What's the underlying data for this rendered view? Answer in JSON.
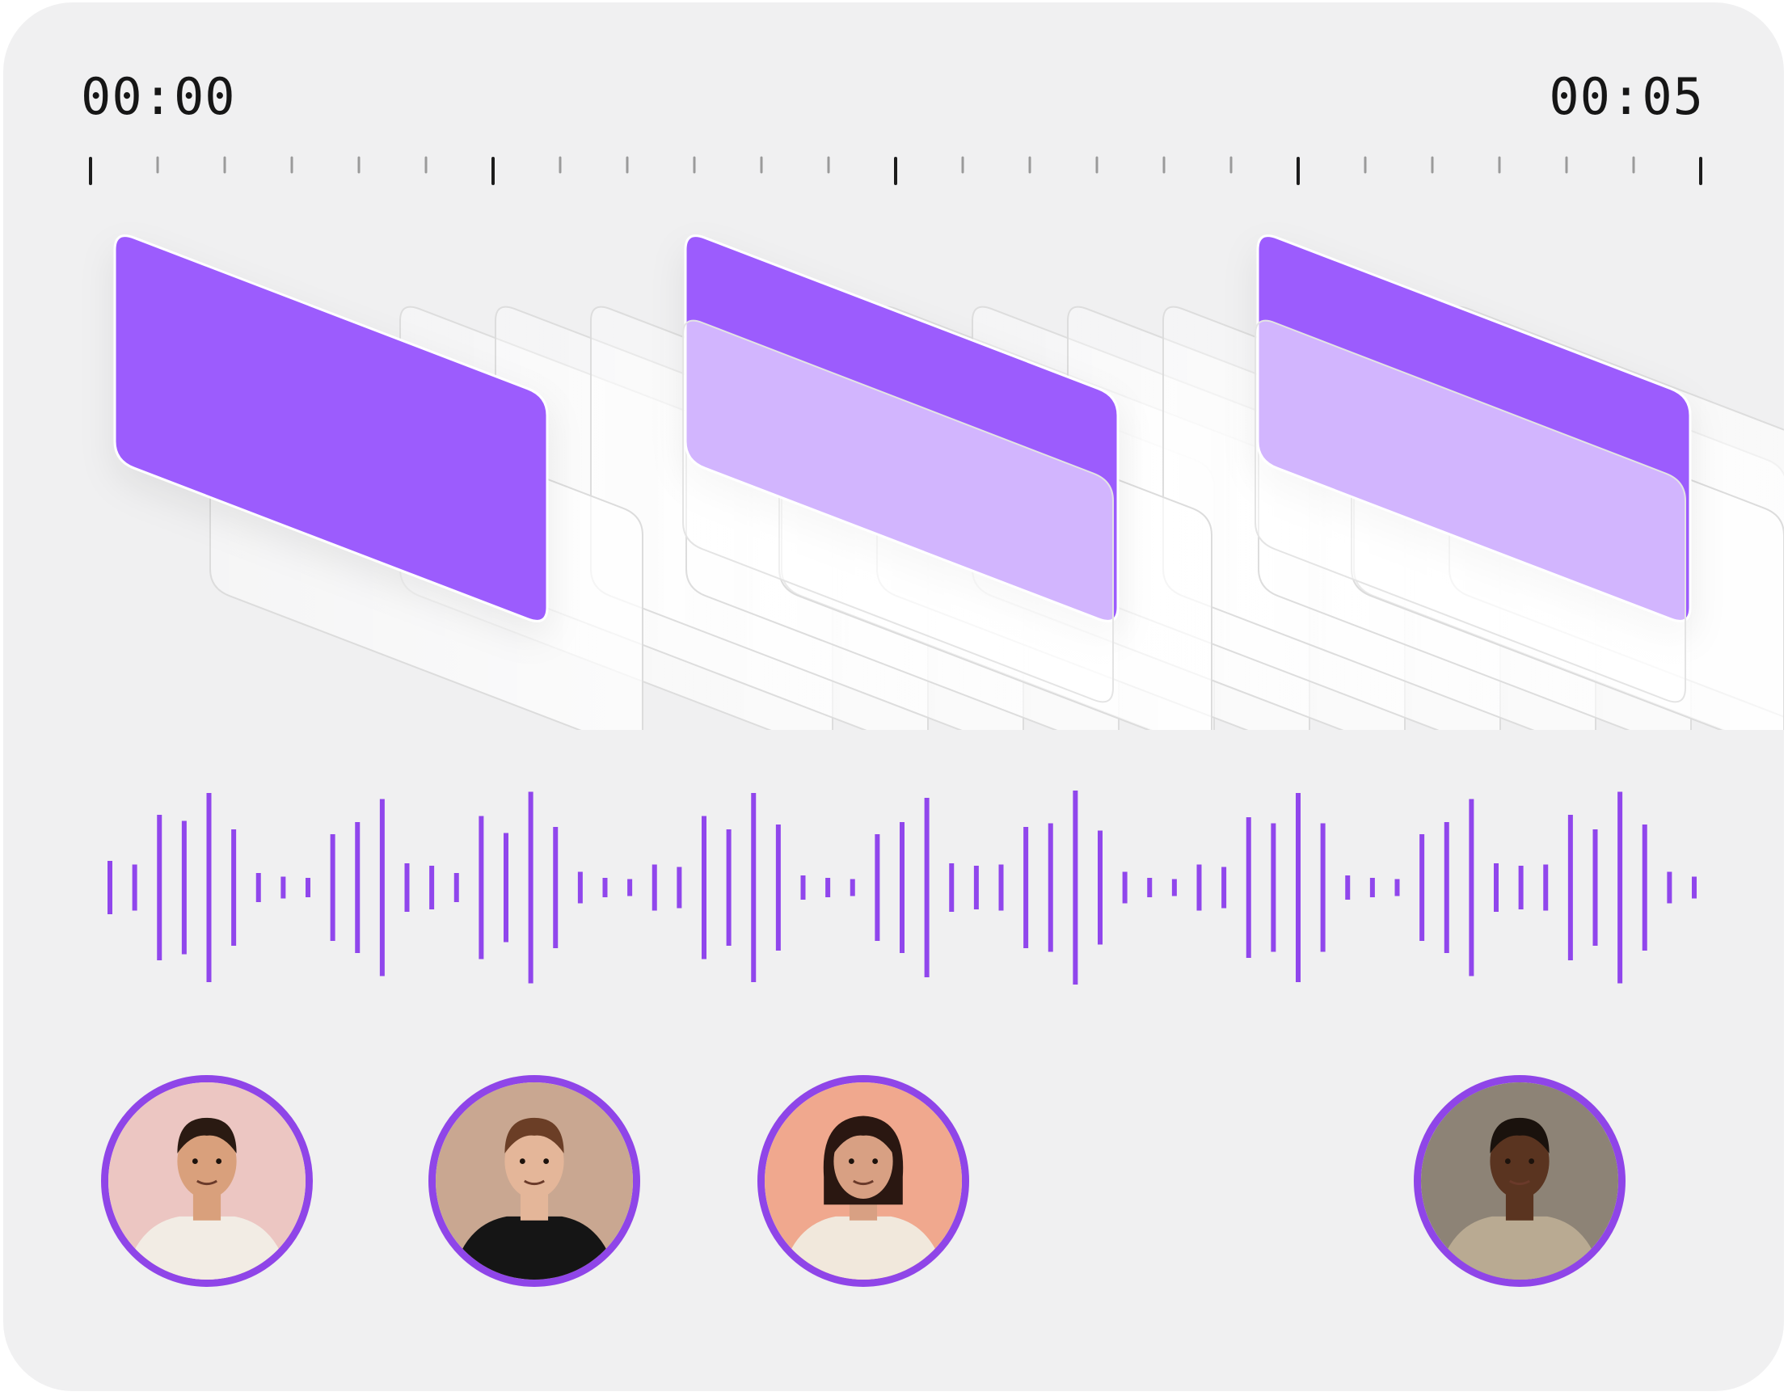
{
  "timeline": {
    "start_time": "00:00",
    "end_time": "00:05"
  },
  "colors": {
    "card_background": "#f0f0f1",
    "accent_purple": "#9c5cfd",
    "waveform_purple": "#9046ec",
    "avatar_ring": "#8f45e8",
    "tick_major": "#1c1c1c",
    "tick_minor": "#9a9a9a"
  },
  "waveform": {
    "bar_levels": [
      0.22,
      0.19,
      0.6,
      0.55,
      0.78,
      0.48,
      0.12,
      0.09,
      0.08,
      0.44,
      0.54,
      0.73,
      0.2,
      0.18,
      0.12,
      0.59,
      0.45,
      0.79,
      0.5,
      0.13,
      0.08,
      0.07,
      0.19,
      0.17,
      0.59,
      0.48,
      0.78,
      0.52,
      0.1,
      0.08,
      0.07,
      0.44,
      0.54,
      0.74,
      0.2,
      0.18,
      0.19,
      0.5,
      0.53,
      0.8,
      0.47,
      0.13,
      0.08,
      0.07,
      0.19,
      0.17,
      0.58,
      0.53,
      0.78,
      0.53,
      0.1,
      0.08,
      0.07,
      0.44,
      0.54,
      0.73,
      0.2,
      0.18,
      0.19,
      0.6,
      0.48,
      0.79,
      0.52,
      0.13,
      0.09
    ]
  },
  "avatars": [
    {
      "name": "avatar-man-colorful-hoodie",
      "bg": "#ecc6c2",
      "skin": "#d9a07c",
      "hair": "#2a1a12",
      "shirt": "#f2ece4"
    },
    {
      "name": "avatar-man-black-hoodie",
      "bg": "#c9a791",
      "skin": "#e4b699",
      "hair": "#6b3e26",
      "shirt": "#151515"
    },
    {
      "name": "avatar-woman-bob-hair",
      "bg": "#f0a88e",
      "skin": "#d8a083",
      "hair": "#2a1711",
      "shirt": "#f1e8dc"
    },
    {
      "name": "avatar-man-beige-jacket",
      "bg": "#8d8376",
      "skin": "#5a3420",
      "hair": "#1a120d",
      "shirt": "#b9aa92"
    }
  ]
}
